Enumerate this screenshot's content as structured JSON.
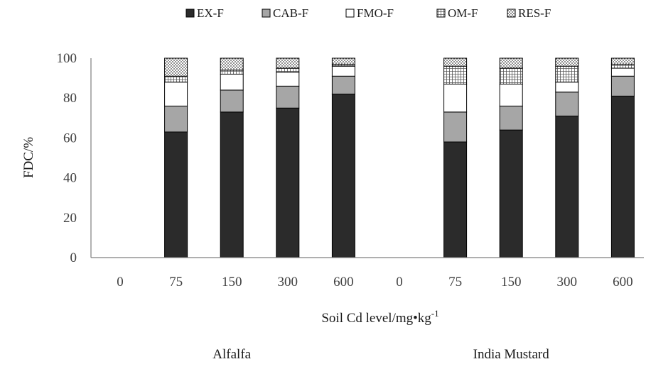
{
  "colors": {
    "EX-F": "#2b2b2b",
    "CAB-F": "#a6a6a6",
    "FMO-F": "#ffffff",
    "OM-F": "#eeeeee",
    "RES-F": "#dddddd",
    "stroke": "#000000",
    "axis": "#7f7f7f"
  },
  "chart_data": {
    "type": "bar",
    "stacked": true,
    "title": "",
    "xlabel": "Soil Cd level/mg•kg",
    "xlabel_superscript": "-1",
    "ylabel": "FDC/%",
    "ylim": [
      0,
      100
    ],
    "yticks": [
      0,
      20,
      40,
      60,
      80,
      100
    ],
    "grid": false,
    "legend_position": "top",
    "categories": [
      "0",
      "75",
      "150",
      "300",
      "600",
      "0",
      "75",
      "150",
      "300",
      "600"
    ],
    "groups": [
      {
        "label": "Alfalfa",
        "start": 0,
        "end": 4
      },
      {
        "label": "India Mustard",
        "start": 5,
        "end": 9
      }
    ],
    "series": [
      {
        "name": "EX-F",
        "values": [
          0,
          63,
          73,
          75,
          82,
          0,
          58,
          64,
          71,
          81
        ]
      },
      {
        "name": "CAB-F",
        "values": [
          0,
          13,
          11,
          11,
          9,
          0,
          15,
          12,
          12,
          10
        ]
      },
      {
        "name": "FMO-F",
        "values": [
          0,
          12,
          8,
          7,
          5,
          0,
          14,
          11,
          5,
          4
        ]
      },
      {
        "name": "OM-F",
        "values": [
          0,
          3,
          2,
          2,
          1,
          0,
          9,
          8,
          8,
          2
        ]
      },
      {
        "name": "RES-F",
        "values": [
          0,
          9,
          6,
          5,
          3,
          0,
          4,
          5,
          4,
          3
        ]
      }
    ]
  }
}
